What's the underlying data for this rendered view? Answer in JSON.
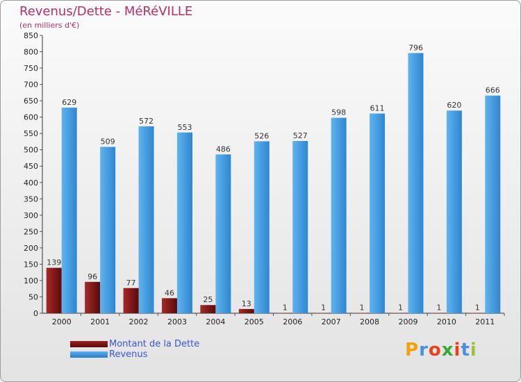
{
  "chart_data": {
    "type": "bar",
    "title": "Revenus/Dette - MéRéVILLE",
    "subtitle": "(en milliers d'€)",
    "categories": [
      "2000",
      "2001",
      "2002",
      "2003",
      "2004",
      "2005",
      "2006",
      "2007",
      "2008",
      "2009",
      "2010",
      "2011"
    ],
    "series": [
      {
        "name": "Montant de la Dette",
        "color": "#7a1010",
        "values": [
          139,
          96,
          77,
          46,
          25,
          13,
          1,
          1,
          1,
          1,
          1,
          1
        ]
      },
      {
        "name": "Revenus",
        "color": "#3d95dc",
        "values": [
          629,
          509,
          572,
          553,
          486,
          526,
          527,
          598,
          611,
          796,
          620,
          666
        ]
      }
    ],
    "ylim": [
      0,
      850
    ],
    "yticks": [
      0,
      50,
      100,
      150,
      200,
      250,
      300,
      350,
      400,
      450,
      500,
      550,
      600,
      650,
      700,
      750,
      800,
      850
    ],
    "grid": false,
    "legend_position": "bottom-left"
  },
  "brand": {
    "letters": [
      "P",
      "r",
      "o",
      "x",
      "i",
      "t",
      "i"
    ],
    "colors": [
      "#f4a00c",
      "#4a8fe0",
      "#e8421a",
      "#3aa834",
      "#e8421a",
      "#4a8fe0",
      "#9ac43a"
    ]
  }
}
